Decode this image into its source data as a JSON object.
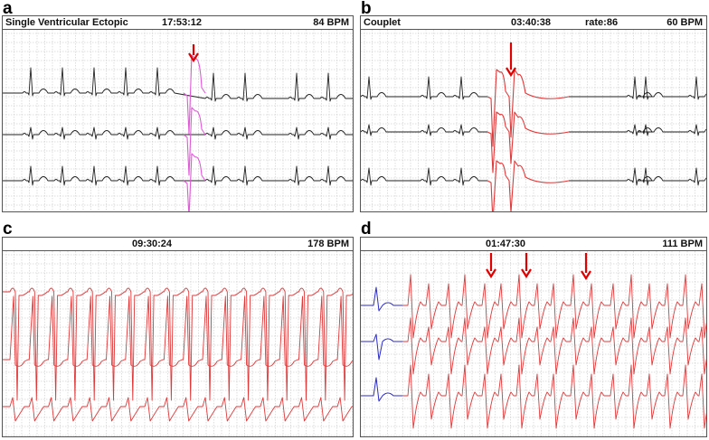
{
  "panels": [
    {
      "letter": "a",
      "type": "Single Ventricular Ectopic",
      "time": "17:53:12",
      "rate": "",
      "bpm": "84 BPM"
    },
    {
      "letter": "b",
      "type": "Couplet",
      "time": "03:40:38",
      "rate": "rate:86",
      "bpm": "60 BPM"
    },
    {
      "letter": "c",
      "type": "",
      "time": "09:30:24",
      "rate": "",
      "bpm": "178 BPM"
    },
    {
      "letter": "d",
      "type": "",
      "time": "01:47:30",
      "rate": "",
      "bpm": "111 BPM"
    }
  ],
  "colors": {
    "normal_trace": "#222222",
    "ectopic_trace": "#e05ad8",
    "couplet_trace": "#e0393a",
    "tachy_trace": "#e0393a",
    "baseline_trace": "#2b2bc8",
    "arrow": "#e00000",
    "grid": "#bdbdbd"
  }
}
